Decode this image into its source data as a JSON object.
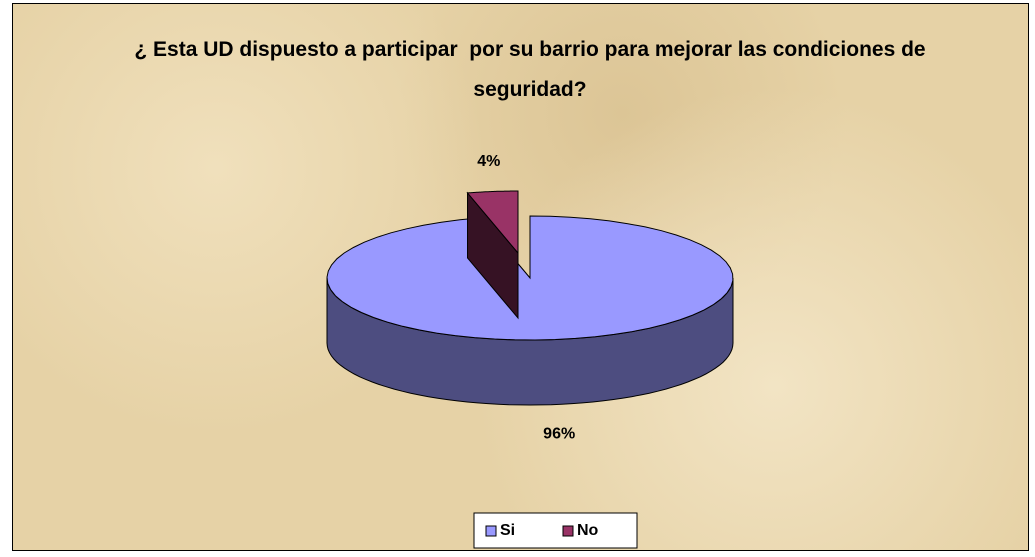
{
  "chart_data": {
    "type": "pie",
    "title": "¿ Esta UD dispuesto a participar  por su barrio para mejorar las condiciones de seguridad?",
    "categories": [
      "Si",
      "No"
    ],
    "values": [
      96,
      4
    ],
    "value_labels": [
      "96%",
      "4%"
    ],
    "colors": [
      "#9999ff",
      "#993366"
    ],
    "legend": "bottom"
  }
}
